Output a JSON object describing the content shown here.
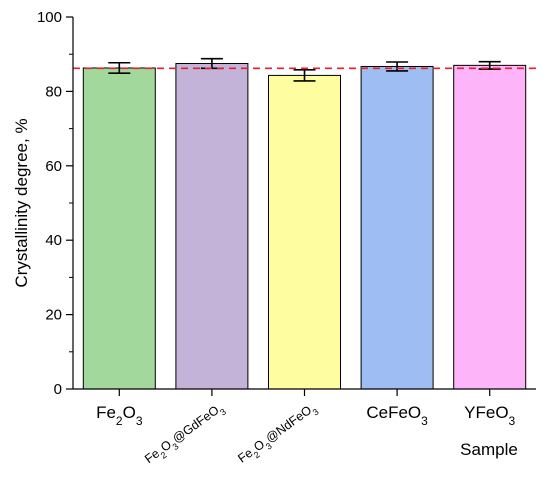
{
  "chart_data": {
    "type": "bar",
    "xlabel": "Sample",
    "ylabel": "Crystallinity degree, %",
    "ylim": [
      0,
      100
    ],
    "yticks": [
      0,
      20,
      40,
      60,
      80,
      100
    ],
    "grid": false,
    "reference_line": {
      "value": 86.2,
      "style": "dashed",
      "color": "#e8202a"
    },
    "categories": [
      {
        "base": "Fe",
        "sub1": "2",
        "mid": "O",
        "sub2": "3",
        "rest": "",
        "rotated": false,
        "text": "Fe2O3"
      },
      {
        "base": "Fe",
        "sub1": "2",
        "mid": "O",
        "sub2": "3",
        "rest": "@GdFeO",
        "sub3": "3",
        "rotated": true,
        "text": "Fe2O3@GdFeO3"
      },
      {
        "base": "Fe",
        "sub1": "2",
        "mid": "O",
        "sub2": "3",
        "rest": "@NdFeO",
        "sub3": "3",
        "rotated": true,
        "text": "Fe2O3@NdFeO3"
      },
      {
        "base": "CeFeO",
        "sub1": "3",
        "mid": "",
        "sub2": "",
        "rest": "",
        "rotated": false,
        "text": "CeFeO3"
      },
      {
        "base": "YFeO",
        "sub1": "3",
        "mid": "",
        "sub2": "",
        "rest": "",
        "rotated": false,
        "text": "YFeO3"
      }
    ],
    "values": [
      86.3,
      87.5,
      84.3,
      86.7,
      87.0
    ],
    "errors": [
      1.4,
      1.3,
      1.5,
      1.2,
      1.0
    ],
    "colors": [
      "#a2d89c",
      "#c3b3d8",
      "#fefd9f",
      "#9ebdf3",
      "#fdb4f8"
    ]
  }
}
